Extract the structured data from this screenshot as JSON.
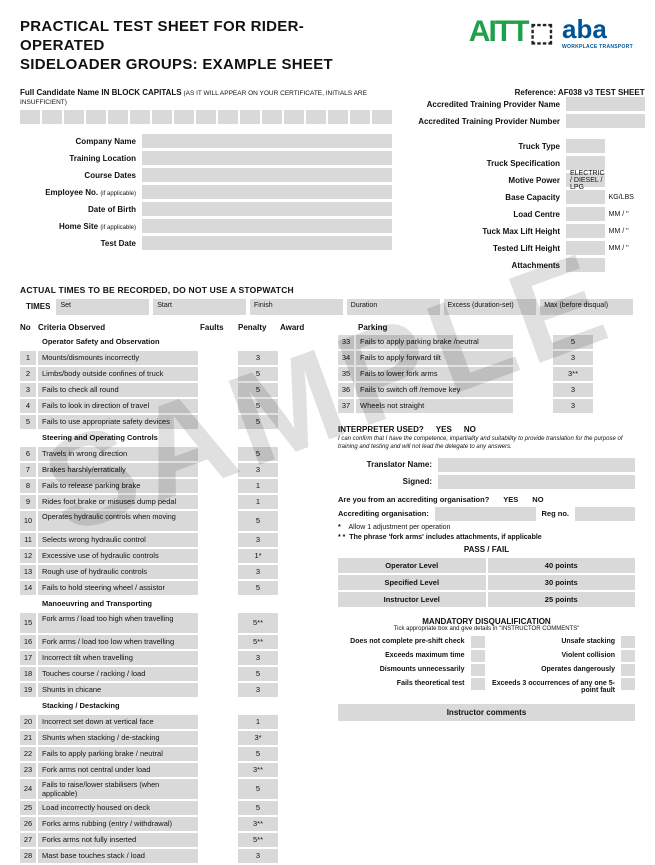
{
  "title1": "PRACTICAL TEST SHEET FOR RIDER-OPERATED",
  "title2": "SIDELOADER GROUPS: EXAMPLE SHEET",
  "watermark": "SAMPLE",
  "logos": {
    "aitt": "AITT",
    "aba": "aba",
    "aba_sub": "WORKPLACE TRANSPORT"
  },
  "reference": "Reference: AF038 v3 TEST SHEET",
  "atp_name_label": "Accredited Training Provider Name",
  "atp_num_label": "Accredited Training Provider Number",
  "full_name_label": "Full Candidate Name IN BLOCK CAPITALS",
  "full_name_sub": " (AS IT WILL APPEAR ON YOUR CERTIFICATE, INITIALS ARE INSUFFICIENT)",
  "left_fields": [
    {
      "label": "Company Name"
    },
    {
      "label": "Training Location"
    },
    {
      "label": "Course Dates"
    },
    {
      "label": "Employee No.",
      "sub": "(if applicable)"
    },
    {
      "label": "Date of Birth"
    },
    {
      "label": "Home Site",
      "sub": "(if applicable)"
    },
    {
      "label": "Test Date"
    }
  ],
  "right_fields": [
    {
      "label": "Truck Type",
      "unit": ""
    },
    {
      "label": "Truck Specification",
      "unit": ""
    },
    {
      "label": "Motive Power",
      "val": "ELECTRIC / DIESEL / LPG",
      "unit": ""
    },
    {
      "label": "Base Capacity",
      "unit": "KG/LBS"
    },
    {
      "label": "Load Centre",
      "unit": "MM / \""
    },
    {
      "label": "Tuck Max Lift Height",
      "unit": "MM / \""
    },
    {
      "label": "Tested Lift Height",
      "unit": "MM / \""
    },
    {
      "label": "Attachments",
      "unit": ""
    }
  ],
  "times_header": "ACTUAL TIMES TO BE RECORDED, DO NOT USE A STOPWATCH",
  "times_label": "TIMES",
  "times_cols": [
    "Set",
    "Start",
    "Finish",
    "Duration",
    "Excess (duration-set)",
    "Max (before disqual)"
  ],
  "crit_headers": {
    "no": "No",
    "crit": "Criteria Observed",
    "faults": "Faults",
    "penalty": "Penalty",
    "award": "Award"
  },
  "sections_left": [
    {
      "head": "Operator Safety and Observation",
      "rows": [
        {
          "n": "1",
          "t": "Mounts/dismounts incorrectly",
          "p": "3"
        },
        {
          "n": "2",
          "t": "Limbs/body outside confines of truck",
          "p": "5"
        },
        {
          "n": "3",
          "t": "Fails to check all round",
          "p": "5"
        },
        {
          "n": "4",
          "t": "Fails to look in direction of travel",
          "p": "5"
        },
        {
          "n": "5",
          "t": "Fails to use appropriate safety devices",
          "p": "5"
        }
      ]
    },
    {
      "head": "Steering and Operating Controls",
      "rows": [
        {
          "n": "6",
          "t": "Travels in wrong direction",
          "p": "5"
        },
        {
          "n": "7",
          "t": "Brakes harshly/erratically",
          "p": "3"
        },
        {
          "n": "8",
          "t": "Fails to release parking brake",
          "p": "1"
        },
        {
          "n": "9",
          "t": "Rides foot brake or misuses dump pedal",
          "p": "1"
        },
        {
          "n": "10",
          "t": "Operates hydraulic controls when moving",
          "p": "5",
          "tall": true
        },
        {
          "n": "11",
          "t": "Selects wrong hydraulic control",
          "p": "3"
        },
        {
          "n": "12",
          "t": "Excessive use of hydraulic controls",
          "p": "1*"
        },
        {
          "n": "13",
          "t": "Rough use of hydraulic controls",
          "p": "3"
        },
        {
          "n": "14",
          "t": "Fails to hold steering wheel / assistor",
          "p": "5"
        }
      ]
    },
    {
      "head": "Manoeuvring and Transporting",
      "rows": [
        {
          "n": "15",
          "t": "Fork arms / load too high when travelling",
          "p": "5**",
          "tall": true
        },
        {
          "n": "16",
          "t": "Fork arms / load too low when travelling",
          "p": "5**"
        },
        {
          "n": "17",
          "t": "Incorrect tilt when travelling",
          "p": "3"
        },
        {
          "n": "18",
          "t": "Touches course / racking / load",
          "p": "5"
        },
        {
          "n": "19",
          "t": "Shunts in chicane",
          "p": "3"
        }
      ]
    },
    {
      "head": "Stacking / Destacking",
      "rows": [
        {
          "n": "20",
          "t": "Incorrect set down at vertical face",
          "p": "1"
        },
        {
          "n": "21",
          "t": "Shunts when stacking / de-stacking",
          "p": "3*"
        },
        {
          "n": "22",
          "t": "Fails to apply parking brake / neutral",
          "p": "5"
        },
        {
          "n": "23",
          "t": "Fork arms not central under load",
          "p": "3**"
        },
        {
          "n": "24",
          "t": "Fails to raise/lower stabilisers (when applicable)",
          "p": "5",
          "tall": true
        },
        {
          "n": "25",
          "t": "Load incorrectly housed on deck",
          "p": "5"
        },
        {
          "n": "26",
          "t": "Forks arms rubbing (entry / withdrawal)",
          "p": "3**"
        },
        {
          "n": "27",
          "t": "Forks arms not fully inserted",
          "p": "5**"
        },
        {
          "n": "28",
          "t": "Mast base touches stack / load",
          "p": "3"
        }
      ]
    }
  ],
  "parking_head": "Parking",
  "parking_rows": [
    {
      "n": "33",
      "t": "Fails to apply parking brake /neutral",
      "p": "5"
    },
    {
      "n": "34",
      "t": "Fails to apply forward tilt",
      "p": "3"
    },
    {
      "n": "35",
      "t": "Fails to lower fork arms",
      "p": "3**"
    },
    {
      "n": "36",
      "t": "Fails to switch off  /remove key",
      "p": "3"
    },
    {
      "n": "37",
      "t": "Wheels not straight",
      "p": "3"
    }
  ],
  "interpreter": {
    "q": "INTERPRETER USED?",
    "yes": "YES",
    "no": "NO",
    "note": "I can confirm that I have the competence, impartiality and suitability to provide translation for the purpose of training and testing and will not lead the delegate to any answers.",
    "trans_name": "Translator Name:",
    "signed": "Signed:",
    "accred_q": "Are you from an accrediting organisation?",
    "accred_org": "Accrediting organisation:",
    "reg": "Reg no."
  },
  "notes": {
    "n1": "Allow 1 adjustment per operation",
    "n2": "The phrase 'fork arms' includes attachments, if applicable"
  },
  "passfail": {
    "head": "PASS / FAIL",
    "rows": [
      {
        "l": "Operator Level",
        "r": "40 points"
      },
      {
        "l": "Specified Level",
        "r": "30 points"
      },
      {
        "l": "Instructor Level",
        "r": "25 points"
      }
    ]
  },
  "mandatory": {
    "head": "MANDATORY DISQUALIFICATION",
    "sub": "Tick appropriate box and give details in \"INSTRUCTOR COMMENTS\"",
    "items": [
      [
        "Does not complete pre-shift check",
        "Unsafe stacking"
      ],
      [
        "Exceeds maximum time",
        "Violent collision"
      ],
      [
        "Dismounts unnecessarily",
        "Operates dangerously"
      ],
      [
        "Fails theoretical test",
        "Exceeds 3 occurrences of any one 5-point fault"
      ]
    ]
  },
  "instr_comments": "Instructor comments"
}
